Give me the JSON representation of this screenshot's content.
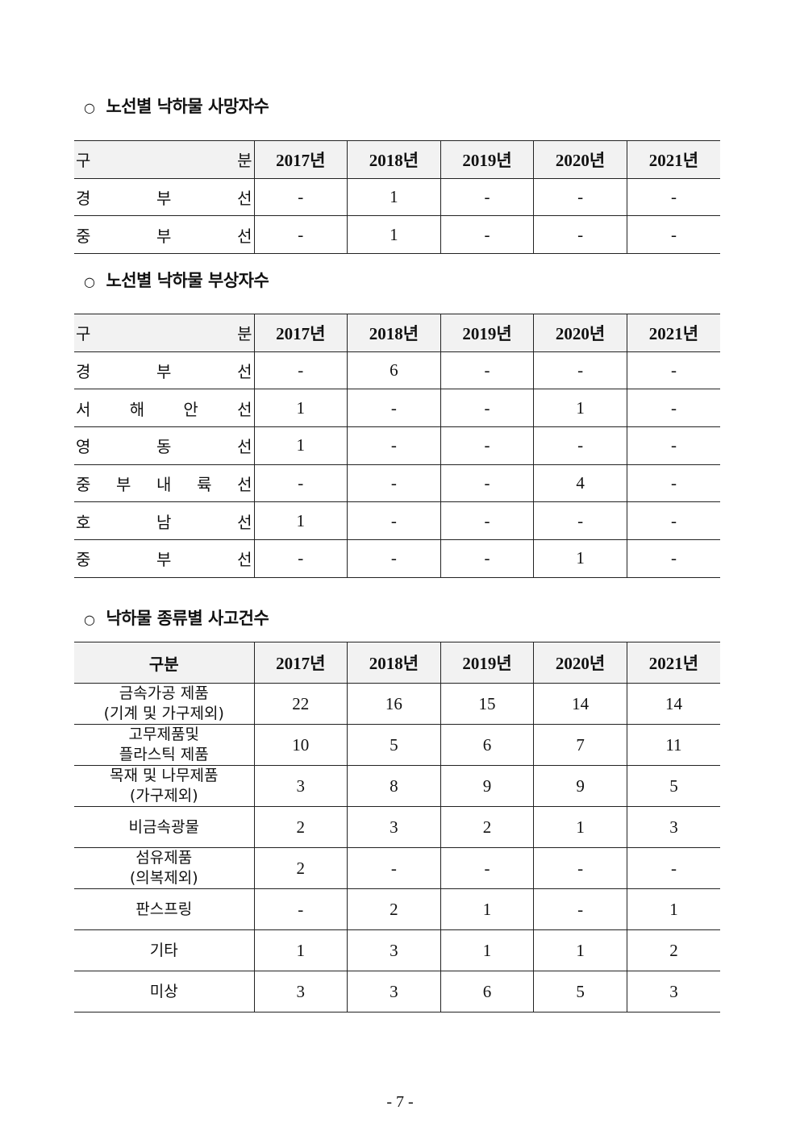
{
  "sections": [
    {
      "title": "노선별 낙하물 사망자수",
      "header": [
        "구 분",
        "2017년",
        "2018년",
        "2019년",
        "2020년",
        "2021년"
      ],
      "rows": [
        [
          "경 부 선",
          "-",
          "1",
          "-",
          "-",
          "-"
        ],
        [
          "중 부 선",
          "-",
          "1",
          "-",
          "-",
          "-"
        ]
      ]
    },
    {
      "title": "노선별 낙하물 부상자수",
      "header": [
        "구 분",
        "2017년",
        "2018년",
        "2019년",
        "2020년",
        "2021년"
      ],
      "rows": [
        [
          "경 부 선",
          "-",
          "6",
          "-",
          "-",
          "-"
        ],
        [
          "서 해 안 선",
          "1",
          "-",
          "-",
          "1",
          "-"
        ],
        [
          "영 동 선",
          "1",
          "-",
          "-",
          "-",
          "-"
        ],
        [
          "중 부 내 륙 선",
          "-",
          "-",
          "-",
          "4",
          "-"
        ],
        [
          "호 남 선",
          "1",
          "-",
          "-",
          "-",
          "-"
        ],
        [
          "중 부 선",
          "-",
          "-",
          "-",
          "1",
          "-"
        ]
      ]
    },
    {
      "title": "낙하물 종류별 사고건수",
      "header": [
        "구분",
        "2017년",
        "2018년",
        "2019년",
        "2020년",
        "2021년"
      ],
      "rows": [
        [
          "금속가공 제품\n(기계 및 가구제외)",
          "22",
          "16",
          "15",
          "14",
          "14"
        ],
        [
          "고무제품및\n플라스틱 제품",
          "10",
          "5",
          "6",
          "7",
          "11"
        ],
        [
          "목재 및 나무제품\n(가구제외)",
          "3",
          "8",
          "9",
          "9",
          "5"
        ],
        [
          "비금속광물",
          "2",
          "3",
          "2",
          "1",
          "3"
        ],
        [
          "섬유제품\n(의복제외)",
          "2",
          "-",
          "-",
          "-",
          "-"
        ],
        [
          "판스프링",
          "-",
          "2",
          "1",
          "-",
          "1"
        ],
        [
          "기타",
          "1",
          "3",
          "1",
          "1",
          "2"
        ],
        [
          "미상",
          "3",
          "3",
          "6",
          "5",
          "3"
        ]
      ]
    }
  ],
  "bullet": "○",
  "page_number": "- 7 -"
}
